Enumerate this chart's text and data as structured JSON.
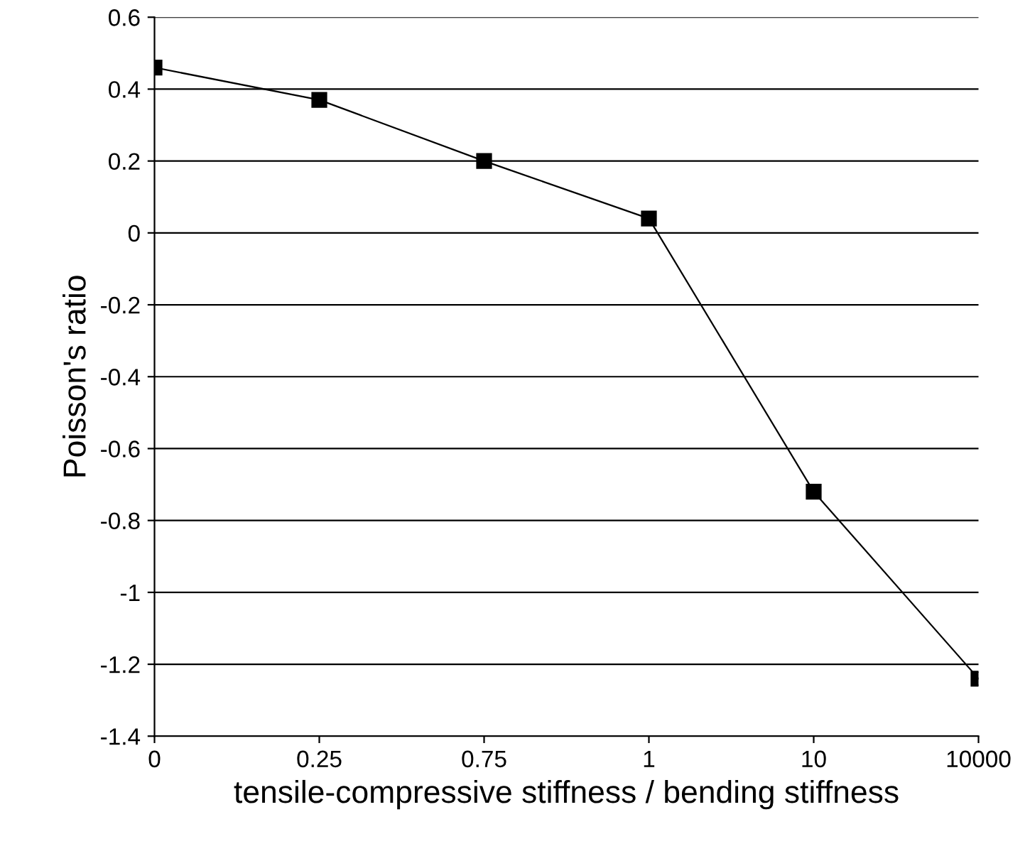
{
  "chart_data": {
    "type": "line",
    "xlabel": "tensile-compressive stiffness / bending stiffness",
    "ylabel": "Poisson's ratio",
    "categories": [
      "0",
      "0.25",
      "0.75",
      "1",
      "10",
      "10000"
    ],
    "series": [
      {
        "color": "#000000",
        "values": [
          0.46,
          0.37,
          0.2,
          0.04,
          -0.72,
          -1.24
        ]
      }
    ],
    "ylim": [
      -1.4,
      0.6
    ],
    "yticks": [
      -1.4,
      -1.2,
      -1,
      -0.8,
      -0.6,
      -0.4,
      -0.2,
      0,
      0.2,
      0.4,
      0.6
    ],
    "grid": "y",
    "marker": "square",
    "line_style": "solid"
  }
}
